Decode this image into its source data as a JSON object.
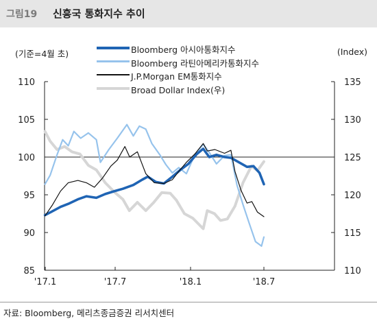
{
  "header": {
    "figure_label": "그림19",
    "title": "신흥국 통화지수 추이"
  },
  "axes": {
    "left_unit": "(기준=4월 초)",
    "right_unit": "(Index)"
  },
  "source": "자료: Bloomberg, 메리츠종금증권 리서치센터",
  "colors": {
    "asia": "#1f64b4",
    "latam": "#96c3ec",
    "jpm": "#111111",
    "dollar": "#d6d6d6",
    "header_bg": "#e6e6e6"
  },
  "chart_data": {
    "type": "line",
    "x_ticks": [
      "'17.1",
      "'17.7",
      "'18.1",
      "'18.7"
    ],
    "y_left": {
      "ticks": [
        "110",
        "105",
        "100",
        "95",
        "90",
        "85"
      ],
      "ylim": [
        85,
        110
      ]
    },
    "y_right": {
      "ticks": [
        "135",
        "130",
        "125",
        "120",
        "115",
        "110"
      ],
      "ylim": [
        110,
        135
      ]
    },
    "reference_line": {
      "axis": "left",
      "value": 100
    },
    "series": [
      {
        "name": "Bloomberg 아시아통화지수",
        "axis": "left",
        "points": [
          [
            "2017-01-02",
            92.3
          ],
          [
            "2017-01-20",
            92.8
          ],
          [
            "2017-02-10",
            93.4
          ],
          [
            "2017-03-01",
            93.8
          ],
          [
            "2017-03-25",
            94.4
          ],
          [
            "2017-04-15",
            94.8
          ],
          [
            "2017-05-10",
            94.6
          ],
          [
            "2017-06-01",
            95.1
          ],
          [
            "2017-06-25",
            95.5
          ],
          [
            "2017-07-15",
            95.8
          ],
          [
            "2017-08-10",
            96.3
          ],
          [
            "2017-09-01",
            97.0
          ],
          [
            "2017-09-15",
            97.4
          ],
          [
            "2017-10-05",
            96.7
          ],
          [
            "2017-10-25",
            96.5
          ],
          [
            "2017-11-15",
            97.4
          ],
          [
            "2017-12-05",
            98.3
          ],
          [
            "2017-12-25",
            99.1
          ],
          [
            "2018-01-15",
            100.4
          ],
          [
            "2018-01-31",
            101.1
          ],
          [
            "2018-02-15",
            100.0
          ],
          [
            "2018-03-05",
            100.3
          ],
          [
            "2018-03-25",
            100.0
          ],
          [
            "2018-04-10",
            99.9
          ],
          [
            "2018-04-30",
            99.3
          ],
          [
            "2018-05-20",
            98.7
          ],
          [
            "2018-06-05",
            98.8
          ],
          [
            "2018-06-20",
            97.9
          ],
          [
            "2018-07-01",
            96.4
          ]
        ]
      },
      {
        "name": "Bloomberg 라틴아메리카통화지수",
        "axis": "left",
        "points": [
          [
            "2017-01-02",
            96.4
          ],
          [
            "2017-01-15",
            97.6
          ],
          [
            "2017-02-01",
            100.3
          ],
          [
            "2017-02-15",
            102.3
          ],
          [
            "2017-03-01",
            101.5
          ],
          [
            "2017-03-15",
            103.4
          ],
          [
            "2017-04-01",
            102.5
          ],
          [
            "2017-04-20",
            103.2
          ],
          [
            "2017-05-10",
            102.3
          ],
          [
            "2017-05-20",
            99.3
          ],
          [
            "2017-06-10",
            101.0
          ],
          [
            "2017-07-01",
            102.5
          ],
          [
            "2017-07-25",
            104.3
          ],
          [
            "2017-08-10",
            102.8
          ],
          [
            "2017-08-25",
            104.1
          ],
          [
            "2017-09-10",
            103.7
          ],
          [
            "2017-09-25",
            101.8
          ],
          [
            "2017-10-15",
            100.3
          ],
          [
            "2017-10-30",
            99.0
          ],
          [
            "2017-11-15",
            97.9
          ],
          [
            "2017-12-01",
            98.6
          ],
          [
            "2017-12-20",
            97.8
          ],
          [
            "2018-01-10",
            100.3
          ],
          [
            "2018-01-31",
            101.7
          ],
          [
            "2018-02-15",
            100.6
          ],
          [
            "2018-03-05",
            99.1
          ],
          [
            "2018-03-25",
            100.2
          ],
          [
            "2018-04-10",
            100.3
          ],
          [
            "2018-04-25",
            96.3
          ],
          [
            "2018-05-10",
            93.7
          ],
          [
            "2018-05-25",
            91.3
          ],
          [
            "2018-06-10",
            88.8
          ],
          [
            "2018-06-25",
            88.2
          ],
          [
            "2018-07-01",
            89.4
          ]
        ]
      },
      {
        "name": "J.P.Morgan EM통화지수",
        "axis": "left",
        "points": [
          [
            "2017-01-02",
            92.2
          ],
          [
            "2017-01-20",
            93.6
          ],
          [
            "2017-02-10",
            95.5
          ],
          [
            "2017-03-01",
            96.6
          ],
          [
            "2017-03-25",
            96.9
          ],
          [
            "2017-04-15",
            96.6
          ],
          [
            "2017-05-05",
            96.0
          ],
          [
            "2017-05-25",
            97.2
          ],
          [
            "2017-06-15",
            98.8
          ],
          [
            "2017-07-01",
            99.6
          ],
          [
            "2017-07-20",
            101.4
          ],
          [
            "2017-08-01",
            100.0
          ],
          [
            "2017-08-20",
            100.7
          ],
          [
            "2017-09-10",
            97.8
          ],
          [
            "2017-10-01",
            96.6
          ],
          [
            "2017-10-25",
            96.5
          ],
          [
            "2017-11-15",
            97.0
          ],
          [
            "2017-12-01",
            98.1
          ],
          [
            "2017-12-20",
            99.3
          ],
          [
            "2018-01-10",
            100.4
          ],
          [
            "2018-01-31",
            101.8
          ],
          [
            "2018-02-10",
            100.8
          ],
          [
            "2018-03-01",
            101.0
          ],
          [
            "2018-03-25",
            100.5
          ],
          [
            "2018-04-10",
            100.9
          ],
          [
            "2018-04-20",
            98.1
          ],
          [
            "2018-05-05",
            95.6
          ],
          [
            "2018-05-20",
            93.9
          ],
          [
            "2018-06-01",
            94.1
          ],
          [
            "2018-06-15",
            92.7
          ],
          [
            "2018-07-01",
            92.1
          ]
        ]
      },
      {
        "name": "Broad Dollar Index(우)",
        "axis": "right",
        "points": [
          [
            "2017-01-02",
            128.4
          ],
          [
            "2017-01-15",
            127.1
          ],
          [
            "2017-02-01",
            126.0
          ],
          [
            "2017-02-20",
            126.4
          ],
          [
            "2017-03-10",
            125.7
          ],
          [
            "2017-03-30",
            125.4
          ],
          [
            "2017-04-20",
            123.9
          ],
          [
            "2017-05-10",
            123.3
          ],
          [
            "2017-06-01",
            121.6
          ],
          [
            "2017-06-25",
            120.3
          ],
          [
            "2017-07-15",
            119.4
          ],
          [
            "2017-07-31",
            117.9
          ],
          [
            "2017-08-20",
            119.0
          ],
          [
            "2017-09-10",
            117.9
          ],
          [
            "2017-09-30",
            119.0
          ],
          [
            "2017-10-20",
            120.3
          ],
          [
            "2017-11-10",
            120.2
          ],
          [
            "2017-11-25",
            119.3
          ],
          [
            "2017-12-15",
            117.5
          ],
          [
            "2018-01-05",
            116.9
          ],
          [
            "2018-01-31",
            115.5
          ],
          [
            "2018-02-10",
            117.9
          ],
          [
            "2018-02-28",
            117.5
          ],
          [
            "2018-03-15",
            116.6
          ],
          [
            "2018-04-01",
            116.8
          ],
          [
            "2018-04-20",
            118.5
          ],
          [
            "2018-05-10",
            121.6
          ],
          [
            "2018-05-31",
            123.8
          ],
          [
            "2018-06-15",
            123.2
          ],
          [
            "2018-07-01",
            124.4
          ]
        ]
      }
    ],
    "legend": {
      "placement": "top-center",
      "items": [
        "Bloomberg 아시아통화지수",
        "Bloomberg 라틴아메리카통화지수",
        "J.P.Morgan EM통화지수",
        "Broad Dollar Index(우)"
      ]
    }
  }
}
